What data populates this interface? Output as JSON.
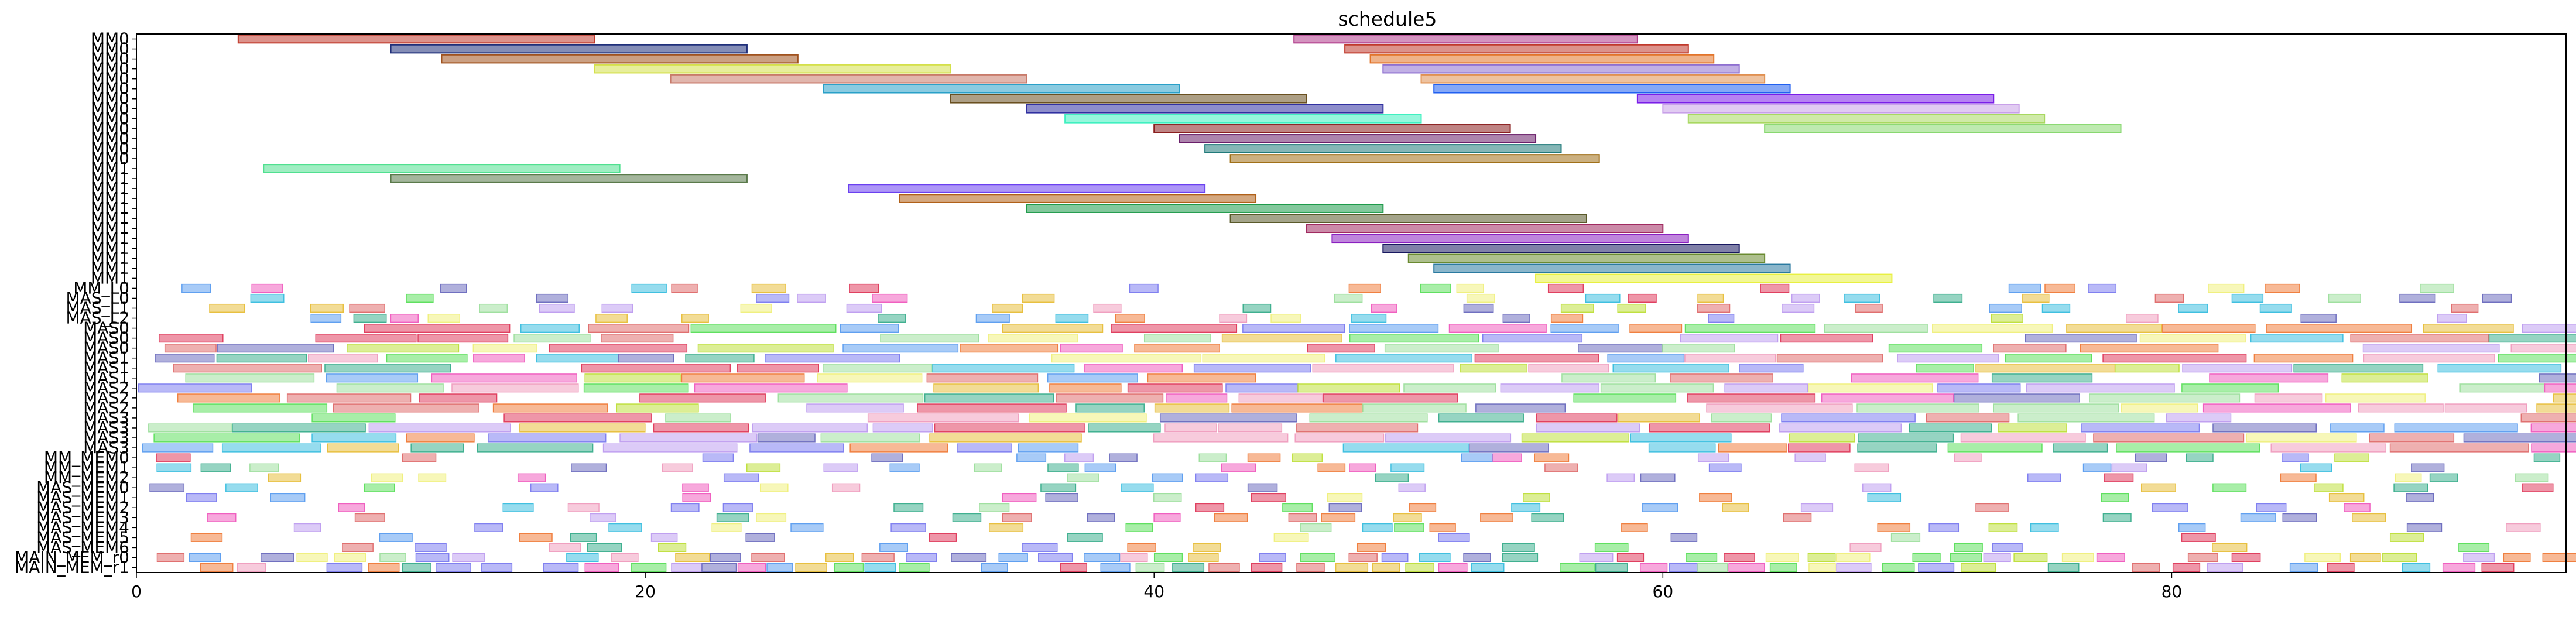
{
  "chart_data": {
    "type": "gantt",
    "title": "schedule5",
    "xlabel": "",
    "ylabel": "",
    "xlim": [
      0,
      95.5
    ],
    "xticks": [
      "0",
      "20",
      "40",
      "60",
      "80"
    ],
    "grid": false,
    "row_labels": [
      "MM0",
      "MM0",
      "MM0",
      "MM0",
      "MM0",
      "MM0",
      "MM0",
      "MM0",
      "MM0",
      "MM0",
      "MM0",
      "MM0",
      "MM0",
      "MM1",
      "MM1",
      "MM1",
      "MM1",
      "MM1",
      "MM1",
      "MM1",
      "MM1",
      "MM1",
      "MM1",
      "MM1",
      "MM1",
      "MM_L0",
      "MAS_L0",
      "MAS_L1",
      "MAS_L2",
      "MAS0",
      "MAS0",
      "MAS0",
      "MAS1",
      "MAS1",
      "MAS1",
      "MAS2",
      "MAS2",
      "MAS2",
      "MAS3",
      "MAS3",
      "MAS3",
      "MAS3",
      "MM_MEM0",
      "MM_MEM1",
      "MM_MEM2",
      "MAS_MEM0",
      "MAS_MEM1",
      "MAS_MEM2",
      "MAS_MEM3",
      "MAS_MEM4",
      "MAS_MEM5",
      "MAS_MEM6",
      "MAIN_MEM_r0",
      "MAIN_MEM_r1"
    ],
    "row_labels_note_excluded": true,
    "tasks": [
      {
        "row": 0,
        "start": 4.0,
        "end": 18.0,
        "color": "#c0392b"
      },
      {
        "row": 0,
        "start": 45.5,
        "end": 59.0,
        "color": "#b03a8a"
      },
      {
        "row": 1,
        "start": 10.0,
        "end": 24.0,
        "color": "#1f2f7a"
      },
      {
        "row": 1,
        "start": 47.5,
        "end": 61.0,
        "color": "#c0392b"
      },
      {
        "row": 2,
        "start": 12.0,
        "end": 26.0,
        "color": "#a0521e"
      },
      {
        "row": 2,
        "start": 48.5,
        "end": 62.0,
        "color": "#e2742a"
      },
      {
        "row": 3,
        "start": 18.0,
        "end": 32.0,
        "color": "#d4e04a"
      },
      {
        "row": 3,
        "start": 49.0,
        "end": 63.0,
        "color": "#8e6fd0"
      },
      {
        "row": 4,
        "start": 21.0,
        "end": 35.0,
        "color": "#c87a6a"
      },
      {
        "row": 4,
        "start": 50.5,
        "end": 64.0,
        "color": "#e09050"
      },
      {
        "row": 5,
        "start": 27.0,
        "end": 41.0,
        "color": "#2aa0c8"
      },
      {
        "row": 5,
        "start": 51.0,
        "end": 65.0,
        "color": "#2060f0"
      },
      {
        "row": 6,
        "start": 32.0,
        "end": 46.0,
        "color": "#6a5020"
      },
      {
        "row": 6,
        "start": 59.0,
        "end": 73.0,
        "color": "#7a1ee8"
      },
      {
        "row": 7,
        "start": 35.0,
        "end": 49.0,
        "color": "#3030a0"
      },
      {
        "row": 7,
        "start": 60.0,
        "end": 74.0,
        "color": "#c8a0e8"
      },
      {
        "row": 8,
        "start": 36.5,
        "end": 50.5,
        "color": "#40f0c0"
      },
      {
        "row": 8,
        "start": 61.0,
        "end": 75.0,
        "color": "#a8d860"
      },
      {
        "row": 9,
        "start": 40.0,
        "end": 54.0,
        "color": "#8a1f1f"
      },
      {
        "row": 9,
        "start": 64.0,
        "end": 78.0,
        "color": "#88d870"
      },
      {
        "row": 10,
        "start": 41.0,
        "end": 55.0,
        "color": "#6a1f6a"
      },
      {
        "row": 11,
        "start": 42.0,
        "end": 56.0,
        "color": "#207a7a"
      },
      {
        "row": 12,
        "start": 43.0,
        "end": 57.5,
        "color": "#a07018"
      },
      {
        "row": 13,
        "start": 5.0,
        "end": 19.0,
        "color": "#50e090"
      },
      {
        "row": 14,
        "start": 10.0,
        "end": 24.0,
        "color": "#5a7a4a"
      },
      {
        "row": 15,
        "start": 28.0,
        "end": 42.0,
        "color": "#6a40f0"
      },
      {
        "row": 16,
        "start": 30.0,
        "end": 44.0,
        "color": "#b06018"
      },
      {
        "row": 17,
        "start": 35.0,
        "end": 49.0,
        "color": "#1e9a4a"
      },
      {
        "row": 18,
        "start": 43.0,
        "end": 57.0,
        "color": "#5a5a2a"
      },
      {
        "row": 19,
        "start": 46.0,
        "end": 60.0,
        "color": "#a02a60"
      },
      {
        "row": 20,
        "start": 47.0,
        "end": 61.0,
        "color": "#8a20c0"
      },
      {
        "row": 21,
        "start": 49.0,
        "end": 63.0,
        "color": "#181860"
      },
      {
        "row": 22,
        "start": 50.0,
        "end": 64.0,
        "color": "#6a8a30"
      },
      {
        "row": 23,
        "start": 51.0,
        "end": 65.0,
        "color": "#2a7aa0"
      },
      {
        "row": 24,
        "start": 55.0,
        "end": 69.0,
        "color": "#e8f040"
      }
    ],
    "dense_rows_start": 25
  }
}
